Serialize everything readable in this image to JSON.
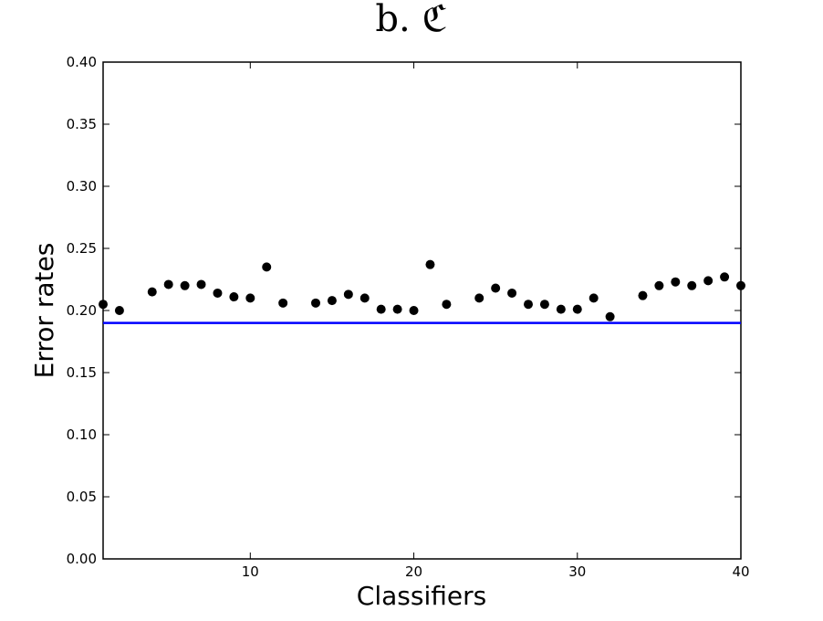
{
  "chart_data": {
    "type": "scatter",
    "title": "b. ℭ",
    "xlabel": "Classifiers",
    "ylabel": "Error rates",
    "xlim": [
      1,
      40
    ],
    "ylim": [
      0,
      0.4
    ],
    "xticks": [
      10,
      20,
      30,
      40
    ],
    "yticks": [
      0.0,
      0.05,
      0.1,
      0.15,
      0.2,
      0.25,
      0.3,
      0.35,
      0.4
    ],
    "grid": false,
    "baseline": {
      "y": 0.19,
      "color": "#0000ff"
    },
    "marker_color": "#000000",
    "series": [
      {
        "x": [
          1,
          2,
          4,
          5,
          6,
          7,
          8,
          9,
          10,
          11,
          12,
          14,
          15,
          16,
          17,
          18,
          19,
          20,
          21,
          22,
          24,
          25,
          26,
          27,
          28,
          29,
          30,
          31,
          32,
          34,
          35,
          36,
          37,
          38,
          39,
          40
        ],
        "y": [
          0.205,
          0.2,
          0.215,
          0.221,
          0.22,
          0.221,
          0.214,
          0.211,
          0.21,
          0.235,
          0.206,
          0.206,
          0.208,
          0.213,
          0.21,
          0.201,
          0.201,
          0.2,
          0.237,
          0.205,
          0.21,
          0.218,
          0.214,
          0.205,
          0.205,
          0.201,
          0.201,
          0.21,
          0.195,
          0.212,
          0.22,
          0.223,
          0.22,
          0.224,
          0.227,
          0.22
        ]
      }
    ]
  }
}
